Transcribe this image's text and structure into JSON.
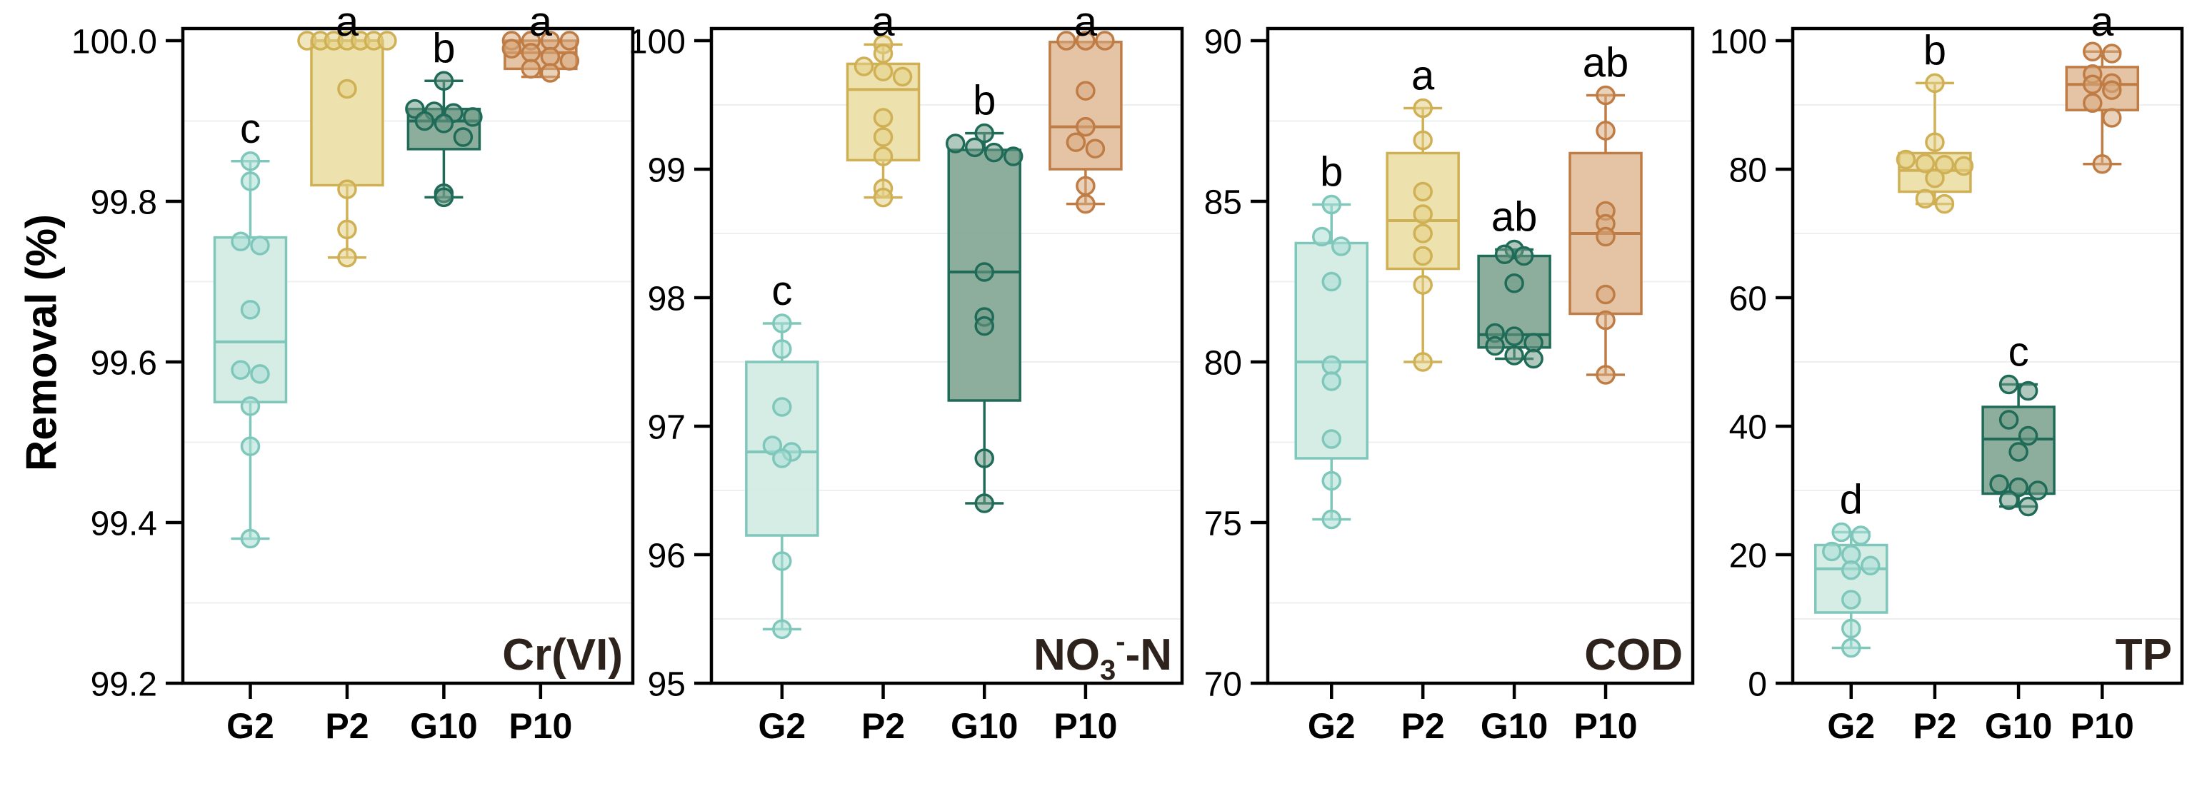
{
  "figure": {
    "y_axis_label": "Removal (%)",
    "background": "#ffffff",
    "axis_color": "#000000",
    "tick_label_color": "#000000",
    "title_color": "#2d221c",
    "gridline_color": "#edf0f0",
    "palette": {
      "G2": {
        "fill": "#d2ebe4",
        "stroke": "#7fc7ba",
        "point": "#aadfd5"
      },
      "P2": {
        "fill": "#ecdfa6",
        "stroke": "#d0b055",
        "point": "#e4d288"
      },
      "G10": {
        "fill": "#84a795",
        "stroke": "#1f6b58",
        "point": "#6f9a87"
      },
      "P10": {
        "fill": "#e3bf9e",
        "stroke": "#bf7c45",
        "point": "#d8ab80"
      }
    }
  },
  "chart_data": [
    {
      "type": "box",
      "id": "crvi",
      "title": "Cr(VI)",
      "title_segments": [
        {
          "text": "Cr(VI)"
        }
      ],
      "ylabel": "Removal (%)",
      "ylim": [
        99.2,
        100.0
      ],
      "yticks": [
        "99.2",
        "99.4",
        "99.6",
        "99.8",
        "100.0"
      ],
      "categories": [
        "G2",
        "P2",
        "G10",
        "P10"
      ],
      "grid": "minor-horizontal",
      "legend": "none",
      "groups": [
        {
          "label": "G2",
          "letter": "c",
          "stats": {
            "whisker_low": 99.38,
            "q1": 99.55,
            "median": 99.625,
            "q3": 99.755,
            "whisker_high": 99.85
          },
          "points": [
            99.85,
            99.825,
            99.75,
            99.745,
            99.665,
            99.59,
            99.585,
            99.545,
            99.495,
            99.38
          ]
        },
        {
          "label": "P2",
          "letter": "a",
          "stats": {
            "whisker_low": 99.73,
            "q1": 99.82,
            "median": 100.0,
            "q3": 100.0,
            "whisker_high": 100.0
          },
          "points": [
            100.0,
            100.0,
            100.0,
            100.0,
            100.0,
            100.0,
            100.0,
            99.94,
            99.815,
            99.765,
            99.73
          ]
        },
        {
          "label": "G10",
          "letter": "b",
          "stats": {
            "whisker_low": 99.805,
            "q1": 99.865,
            "median": 99.9,
            "q3": 99.915,
            "whisker_high": 99.95
          },
          "points": [
            99.95,
            99.915,
            99.912,
            99.91,
            99.905,
            99.9,
            99.897,
            99.88,
            99.81,
            99.805
          ]
        },
        {
          "label": "P10",
          "letter": "a",
          "stats": {
            "whisker_low": 99.955,
            "q1": 99.965,
            "median": 99.985,
            "q3": 100.0,
            "whisker_high": 100.0
          },
          "points": [
            100.0,
            100.0,
            100.0,
            100.0,
            99.99,
            99.985,
            99.98,
            99.975,
            99.965,
            99.96
          ]
        }
      ]
    },
    {
      "type": "box",
      "id": "no3n",
      "title": "NO3--N",
      "title_segments": [
        {
          "text": "NO"
        },
        {
          "text": "3",
          "style": "sub"
        },
        {
          "text": "-",
          "style": "sup"
        },
        {
          "text": "-N"
        }
      ],
      "ylim": [
        95,
        100
      ],
      "yticks": [
        "95",
        "96",
        "97",
        "98",
        "99",
        "100"
      ],
      "categories": [
        "G2",
        "P2",
        "G10",
        "P10"
      ],
      "grid": "minor-horizontal",
      "legend": "none",
      "groups": [
        {
          "label": "G2",
          "letter": "c",
          "stats": {
            "whisker_low": 95.42,
            "q1": 96.15,
            "median": 96.8,
            "q3": 97.5,
            "whisker_high": 97.8
          },
          "points": [
            97.8,
            97.6,
            97.15,
            96.85,
            96.8,
            96.75,
            95.95,
            95.42
          ]
        },
        {
          "label": "P2",
          "letter": "a",
          "stats": {
            "whisker_low": 98.78,
            "q1": 99.07,
            "median": 99.62,
            "q3": 99.82,
            "whisker_high": 99.97
          },
          "points": [
            99.97,
            99.9,
            99.8,
            99.76,
            99.72,
            99.4,
            99.25,
            99.1,
            98.85,
            98.78
          ]
        },
        {
          "label": "G10",
          "letter": "b",
          "stats": {
            "whisker_low": 96.4,
            "q1": 97.2,
            "median": 98.2,
            "q3": 99.15,
            "whisker_high": 99.28
          },
          "points": [
            99.28,
            99.2,
            99.17,
            99.13,
            99.1,
            98.2,
            97.85,
            97.78,
            96.75,
            96.4
          ]
        },
        {
          "label": "P10",
          "letter": "a",
          "stats": {
            "whisker_low": 98.73,
            "q1": 99.0,
            "median": 99.33,
            "q3": 99.99,
            "whisker_high": 100.0
          },
          "points": [
            100.0,
            100.0,
            100.0,
            99.61,
            99.33,
            99.21,
            99.16,
            98.87,
            98.73
          ]
        }
      ]
    },
    {
      "type": "box",
      "id": "cod",
      "title": "COD",
      "title_segments": [
        {
          "text": "COD"
        }
      ],
      "ylim": [
        70,
        90
      ],
      "yticks": [
        "70",
        "75",
        "80",
        "85",
        "90"
      ],
      "categories": [
        "G2",
        "P2",
        "G10",
        "P10"
      ],
      "grid": "minor-horizontal",
      "legend": "none",
      "groups": [
        {
          "label": "G2",
          "letter": "b",
          "stats": {
            "whisker_low": 75.1,
            "q1": 77.0,
            "median": 80.0,
            "q3": 83.7,
            "whisker_high": 84.9
          },
          "points": [
            84.9,
            83.9,
            83.6,
            82.5,
            79.9,
            79.4,
            77.6,
            76.3,
            75.1
          ]
        },
        {
          "label": "P2",
          "letter": "a",
          "stats": {
            "whisker_low": 80.0,
            "q1": 82.9,
            "median": 84.4,
            "q3": 86.5,
            "whisker_high": 87.9
          },
          "points": [
            87.9,
            86.9,
            85.3,
            84.6,
            84.0,
            83.3,
            82.4,
            80.0
          ]
        },
        {
          "label": "G10",
          "letter": "ab",
          "stats": {
            "whisker_low": 80.1,
            "q1": 80.45,
            "median": 80.85,
            "q3": 83.3,
            "whisker_high": 83.5
          },
          "points": [
            83.5,
            83.35,
            83.3,
            82.45,
            80.9,
            80.8,
            80.6,
            80.5,
            80.2,
            80.1
          ]
        },
        {
          "label": "P10",
          "letter": "ab",
          "stats": {
            "whisker_low": 79.6,
            "q1": 81.5,
            "median": 84.0,
            "q3": 86.5,
            "whisker_high": 88.3
          },
          "points": [
            88.3,
            87.2,
            84.7,
            84.3,
            83.9,
            82.1,
            81.3,
            79.6
          ]
        }
      ]
    },
    {
      "type": "box",
      "id": "tp",
      "title": "TP",
      "title_segments": [
        {
          "text": "TP"
        }
      ],
      "ylim": [
        0,
        100
      ],
      "yticks": [
        "0",
        "20",
        "40",
        "60",
        "80",
        "100"
      ],
      "categories": [
        "G2",
        "P2",
        "G10",
        "P10"
      ],
      "grid": "minor-horizontal",
      "legend": "none",
      "groups": [
        {
          "label": "G2",
          "letter": "d",
          "stats": {
            "whisker_low": 5.5,
            "q1": 11.0,
            "median": 17.8,
            "q3": 21.5,
            "whisker_high": 23.5
          },
          "points": [
            23.5,
            23.0,
            20.5,
            20.0,
            18.3,
            17.6,
            13.0,
            8.5,
            5.5
          ]
        },
        {
          "label": "P2",
          "letter": "b",
          "stats": {
            "whisker_low": 74.6,
            "q1": 76.5,
            "median": 79.8,
            "q3": 82.5,
            "whisker_high": 93.4
          },
          "points": [
            93.4,
            84.2,
            81.5,
            80.9,
            80.7,
            80.5,
            78.6,
            75.4,
            74.6
          ]
        },
        {
          "label": "G10",
          "letter": "c",
          "stats": {
            "whisker_low": 27.5,
            "q1": 29.5,
            "median": 38.0,
            "q3": 43.0,
            "whisker_high": 46.5
          },
          "points": [
            46.5,
            45.5,
            41.0,
            38.5,
            36.0,
            31.0,
            30.5,
            30.0,
            28.5,
            27.5
          ]
        },
        {
          "label": "P10",
          "letter": "a",
          "stats": {
            "whisker_low": 80.8,
            "q1": 89.2,
            "median": 93.2,
            "q3": 95.9,
            "whisker_high": 98.3
          },
          "points": [
            98.3,
            98.0,
            94.8,
            93.4,
            93.2,
            92.3,
            90.3,
            88.0,
            80.8
          ]
        }
      ]
    }
  ]
}
